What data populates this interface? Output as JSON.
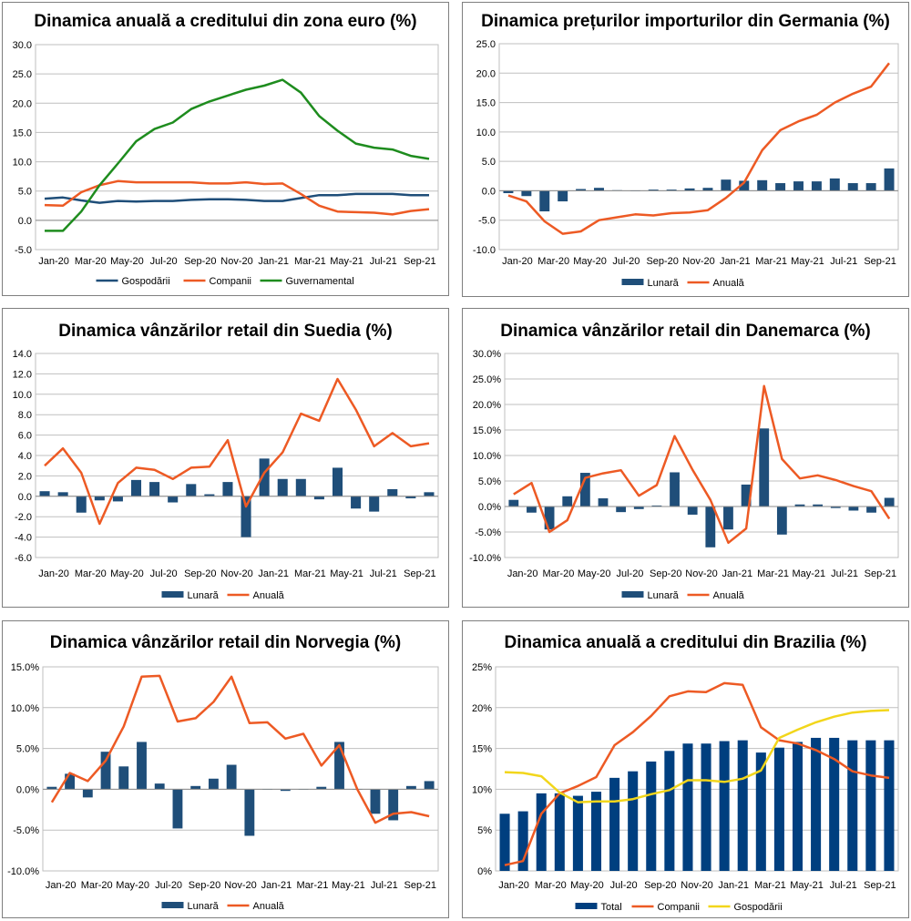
{
  "chart_data": [
    {
      "type": "line",
      "title": "Dinamica anuală a creditului din zona euro (%)",
      "x_ticks": [
        "Jan-20",
        "Mar-20",
        "May-20",
        "Jul-20",
        "Sep-20",
        "Nov-20",
        "Jan-21",
        "Mar-21",
        "May-21",
        "Jul-21",
        "Sep-21"
      ],
      "y_ticks": [
        "-5.0",
        "0.0",
        "5.0",
        "10.0",
        "15.0",
        "20.0",
        "25.0",
        "30.0"
      ],
      "ylim": [
        -5,
        30
      ],
      "n_points": 22,
      "bar_series": null,
      "line_series": [
        {
          "name": "Gospodării",
          "color": "#1f4e79",
          "values": [
            3.7,
            3.9,
            3.4,
            3.0,
            3.3,
            3.2,
            3.3,
            3.3,
            3.5,
            3.6,
            3.6,
            3.5,
            3.3,
            3.3,
            3.8,
            4.3,
            4.3,
            4.5,
            4.5,
            4.5,
            4.3,
            4.3
          ]
        },
        {
          "name": "Companii",
          "color": "#ed5a24",
          "values": [
            2.6,
            2.5,
            4.8,
            6.0,
            6.7,
            6.5,
            6.5,
            6.5,
            6.5,
            6.3,
            6.3,
            6.5,
            6.2,
            6.3,
            4.5,
            2.5,
            1.5,
            1.4,
            1.3,
            1.0,
            1.6,
            1.9
          ]
        },
        {
          "name": "Guvernamental",
          "color": "#1e8c1e",
          "values": [
            -1.8,
            -1.8,
            1.5,
            6.0,
            9.7,
            13.5,
            15.6,
            16.7,
            19.0,
            20.3,
            21.3,
            22.3,
            23.0,
            24.0,
            21.8,
            17.8,
            15.3,
            13.1,
            12.4,
            12.1,
            11.0,
            10.5
          ]
        }
      ]
    },
    {
      "type": "bar+line",
      "title": "Dinamica prețurilor importurilor din Germania (%)",
      "x_ticks": [
        "Jan-20",
        "Mar-20",
        "May-20",
        "Jul-20",
        "Sep-20",
        "Nov-20",
        "Jan-21",
        "Mar-21",
        "May-21",
        "Jul-21",
        "Sep-21"
      ],
      "y_ticks": [
        "-10.0",
        "-5.0",
        "0.0",
        "5.0",
        "10.0",
        "15.0",
        "20.0",
        "25.0"
      ],
      "ylim": [
        -10,
        25
      ],
      "n_points": 22,
      "bar_series": {
        "name": "Lunară",
        "color": "#1f4e79",
        "values": [
          -0.4,
          -0.9,
          -3.5,
          -1.8,
          0.3,
          0.5,
          0.1,
          0.0,
          0.2,
          0.2,
          0.4,
          0.5,
          1.9,
          1.7,
          1.8,
          1.3,
          1.6,
          1.6,
          2.1,
          1.3,
          1.3,
          3.8
        ]
      },
      "line_series": [
        {
          "name": "Anuală",
          "color": "#ed5a24",
          "values": [
            -0.8,
            -1.8,
            -5.2,
            -7.3,
            -6.9,
            -5.0,
            -4.5,
            -4.0,
            -4.2,
            -3.8,
            -3.7,
            -3.3,
            -1.2,
            1.4,
            6.9,
            10.3,
            11.8,
            12.9,
            15.0,
            16.5,
            17.7,
            21.7
          ]
        }
      ]
    },
    {
      "type": "bar+line",
      "title": "Dinamica vânzărilor retail din Suedia (%)",
      "x_ticks": [
        "Jan-20",
        "Mar-20",
        "May-20",
        "Jul-20",
        "Sep-20",
        "Nov-20",
        "Jan-21",
        "Mar-21",
        "May-21",
        "Jul-21",
        "Sep-21"
      ],
      "y_ticks": [
        "-6.0",
        "-4.0",
        "-2.0",
        "0.0",
        "2.0",
        "4.0",
        "6.0",
        "8.0",
        "10.0",
        "12.0",
        "14.0"
      ],
      "ylim": [
        -6,
        14
      ],
      "n_points": 22,
      "bar_series": {
        "name": "Lunară",
        "color": "#1f4e79",
        "values": [
          0.5,
          0.4,
          -1.6,
          -0.4,
          -0.5,
          1.6,
          1.4,
          -0.6,
          1.2,
          0.2,
          1.4,
          -4.0,
          3.7,
          1.7,
          1.7,
          -0.3,
          2.8,
          -1.2,
          -1.5,
          0.7,
          -0.2,
          0.4
        ]
      },
      "line_series": [
        {
          "name": "Anuală",
          "color": "#ed5a24",
          "values": [
            3.0,
            4.7,
            2.3,
            -2.7,
            1.3,
            2.8,
            2.6,
            1.7,
            2.8,
            2.9,
            5.5,
            -1.0,
            2.3,
            4.3,
            8.1,
            7.4,
            11.5,
            8.5,
            4.9,
            6.2,
            4.9,
            5.2
          ]
        }
      ]
    },
    {
      "type": "bar+line",
      "title": "Dinamica vânzărilor retail din Danemarca (%)",
      "x_ticks": [
        "Jan-20",
        "Mar-20",
        "May-20",
        "Jul-20",
        "Sep-20",
        "Nov-20",
        "Jan-21",
        "Mar-21",
        "May-21",
        "Jul-21",
        "Sep-21"
      ],
      "y_ticks": [
        "-10.0%",
        "-5.0%",
        "0.0%",
        "5.0%",
        "10.0%",
        "15.0%",
        "20.0%",
        "25.0%",
        "30.0%"
      ],
      "ylim": [
        -10,
        30
      ],
      "n_points": 22,
      "bar_series": {
        "name": "Lunară",
        "color": "#1f4e79",
        "values": [
          1.3,
          -1.2,
          -4.5,
          2.0,
          6.6,
          1.6,
          -1.1,
          -0.5,
          0.2,
          6.7,
          -1.6,
          -8.0,
          -4.5,
          4.3,
          15.3,
          -5.5,
          0.4,
          0.4,
          -0.3,
          -0.8,
          -1.2,
          1.7
        ]
      },
      "line_series": [
        {
          "name": "Anuală",
          "color": "#ed5a24",
          "values": [
            2.4,
            4.6,
            -5.0,
            -2.7,
            5.6,
            6.5,
            7.1,
            2.1,
            4.2,
            13.8,
            7.2,
            1.3,
            -7.1,
            -4.3,
            23.6,
            9.3,
            5.5,
            6.1,
            5.2,
            4.0,
            3.0,
            -2.4
          ]
        }
      ]
    },
    {
      "type": "bar+line",
      "title": "Dinamica vânzărilor retail din Norvegia (%)",
      "x_ticks": [
        "Jan-20",
        "Mar-20",
        "May-20",
        "Jul-20",
        "Sep-20",
        "Nov-20",
        "Jan-21",
        "Mar-21",
        "May-21",
        "Jul-21",
        "Sep-21"
      ],
      "y_ticks": [
        "-10.0%",
        "-5.0%",
        "0.0%",
        "5.0%",
        "10.0%",
        "15.0%"
      ],
      "ylim": [
        -10,
        15
      ],
      "n_points": 22,
      "bar_series": {
        "name": "Lunară",
        "color": "#1f4e79",
        "values": [
          0.3,
          1.9,
          -1.0,
          4.6,
          2.8,
          5.8,
          0.7,
          -4.8,
          0.4,
          1.3,
          3.0,
          -5.7,
          0.0,
          -0.2,
          0.0,
          0.3,
          5.8,
          0.0,
          -3.0,
          -3.8,
          0.4,
          1.0
        ]
      },
      "line_series": [
        {
          "name": "Anuală",
          "color": "#ed5a24",
          "values": [
            -1.6,
            2.0,
            1.0,
            3.5,
            7.7,
            13.8,
            13.9,
            8.3,
            8.7,
            10.7,
            13.8,
            8.1,
            8.2,
            6.2,
            6.8,
            2.9,
            5.4,
            0.0,
            -4.1,
            -3.0,
            -2.8,
            -3.3
          ]
        }
      ]
    },
    {
      "type": "bar+line",
      "title": "Dinamica anuală a creditului din Brazilia (%)",
      "x_ticks": [
        "Jan-20",
        "Mar-20",
        "May-20",
        "Jul-20",
        "Sep-20",
        "Nov-20",
        "Jan-21",
        "Mar-21",
        "May-21",
        "Jul-21",
        "Sep-21"
      ],
      "y_ticks": [
        "0%",
        "5%",
        "10%",
        "15%",
        "20%",
        "25%"
      ],
      "ylim": [
        0,
        25
      ],
      "n_points": 22,
      "bar_series": {
        "name": "Total",
        "color": "#003f7f",
        "values": [
          7.0,
          7.3,
          9.5,
          9.5,
          9.2,
          9.7,
          11.4,
          12.2,
          13.4,
          14.7,
          15.6,
          15.6,
          15.9,
          16.0,
          14.5,
          15.1,
          15.8,
          16.3,
          16.3,
          16.0,
          16.0,
          16.0
        ]
      },
      "line_series": [
        {
          "name": "Companii",
          "color": "#ed5a24",
          "values": [
            0.7,
            1.2,
            7.0,
            9.5,
            10.4,
            11.5,
            15.4,
            17.0,
            19.0,
            21.4,
            22.0,
            21.9,
            23.0,
            22.8,
            17.6,
            16.0,
            15.6,
            14.8,
            13.7,
            12.2,
            11.7,
            11.4
          ]
        },
        {
          "name": "Gospodării",
          "color": "#f2d61b",
          "values": [
            12.1,
            12.0,
            11.6,
            9.6,
            8.4,
            8.5,
            8.5,
            8.8,
            9.4,
            9.9,
            11.1,
            11.1,
            10.9,
            11.3,
            12.3,
            16.3,
            17.3,
            18.2,
            18.9,
            19.4,
            19.6,
            19.7
          ]
        }
      ]
    }
  ]
}
